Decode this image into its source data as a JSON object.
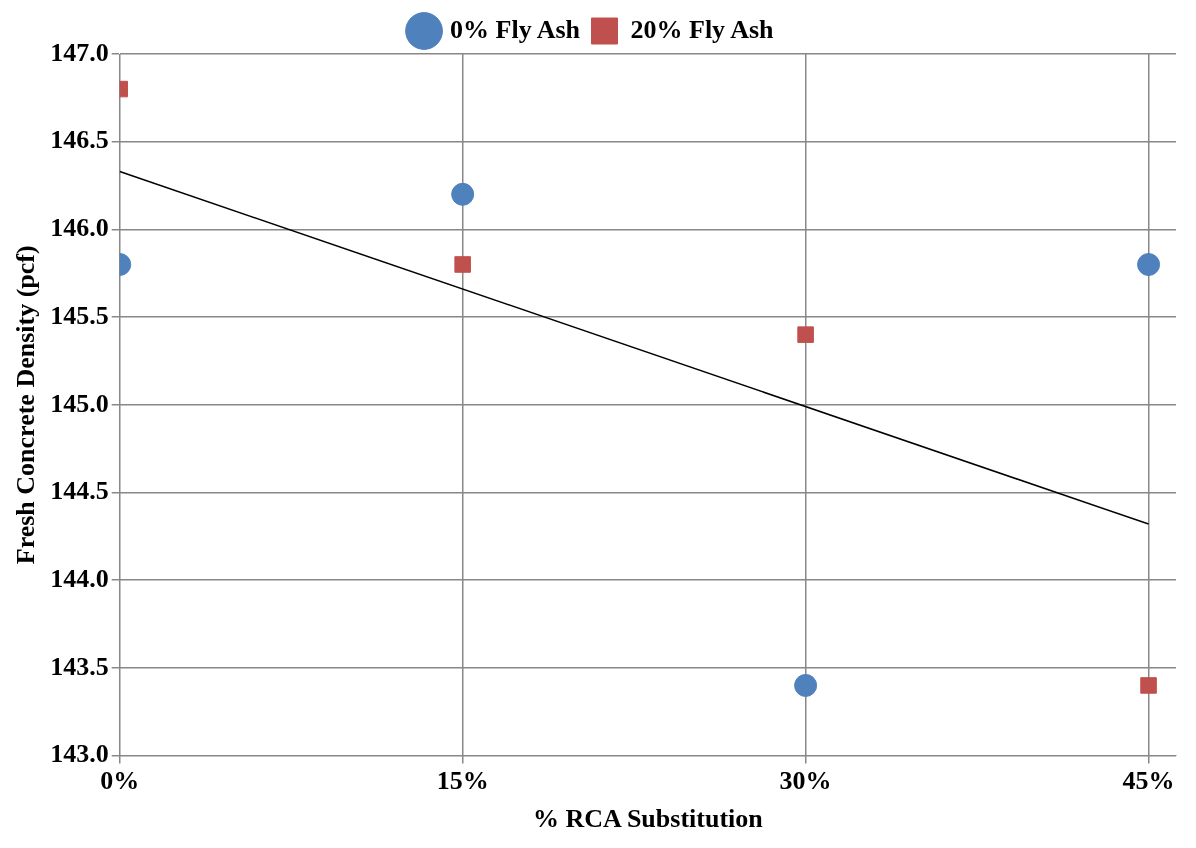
{
  "chart_data": {
    "type": "scatter",
    "xlabel": "% RCA Substitution",
    "ylabel": "Fresh Concrete Density (pcf)",
    "x": [
      0,
      15,
      30,
      45
    ],
    "series": [
      {
        "name": "0% Fly Ash",
        "color": "#4f81bd",
        "marker": "circle",
        "values": [
          145.8,
          146.2,
          143.4,
          145.8
        ]
      },
      {
        "name": "20% Fly Ash",
        "color": "#c0504d",
        "marker": "square",
        "values": [
          146.8,
          145.8,
          145.4,
          143.4
        ]
      },
      {
        "type": "line",
        "color": "#000000",
        "marker": "none",
        "x": [
          0,
          45
        ],
        "values": [
          146.33,
          144.32
        ]
      }
    ],
    "xlim": [
      0,
      46.2
    ],
    "xticks": [
      {
        "value": 0,
        "label": "0%"
      },
      {
        "value": 15,
        "label": "15%"
      },
      {
        "value": 30,
        "label": "30%"
      },
      {
        "value": 45,
        "label": "45%"
      }
    ],
    "ylim": [
      143,
      147
    ],
    "yticks": [
      {
        "value": 143,
        "label": "143.0"
      },
      {
        "value": 143.5,
        "label": "143.5"
      },
      {
        "value": 144,
        "label": "144.0"
      },
      {
        "value": 144.5,
        "label": "144.5"
      },
      {
        "value": 145,
        "label": "145.0"
      },
      {
        "value": 145.5,
        "label": "145.5"
      },
      {
        "value": 146,
        "label": "146.0"
      },
      {
        "value": 146.5,
        "label": "146.5"
      },
      {
        "value": 147,
        "label": "147.0"
      }
    ],
    "grid": true,
    "legend": "top"
  }
}
